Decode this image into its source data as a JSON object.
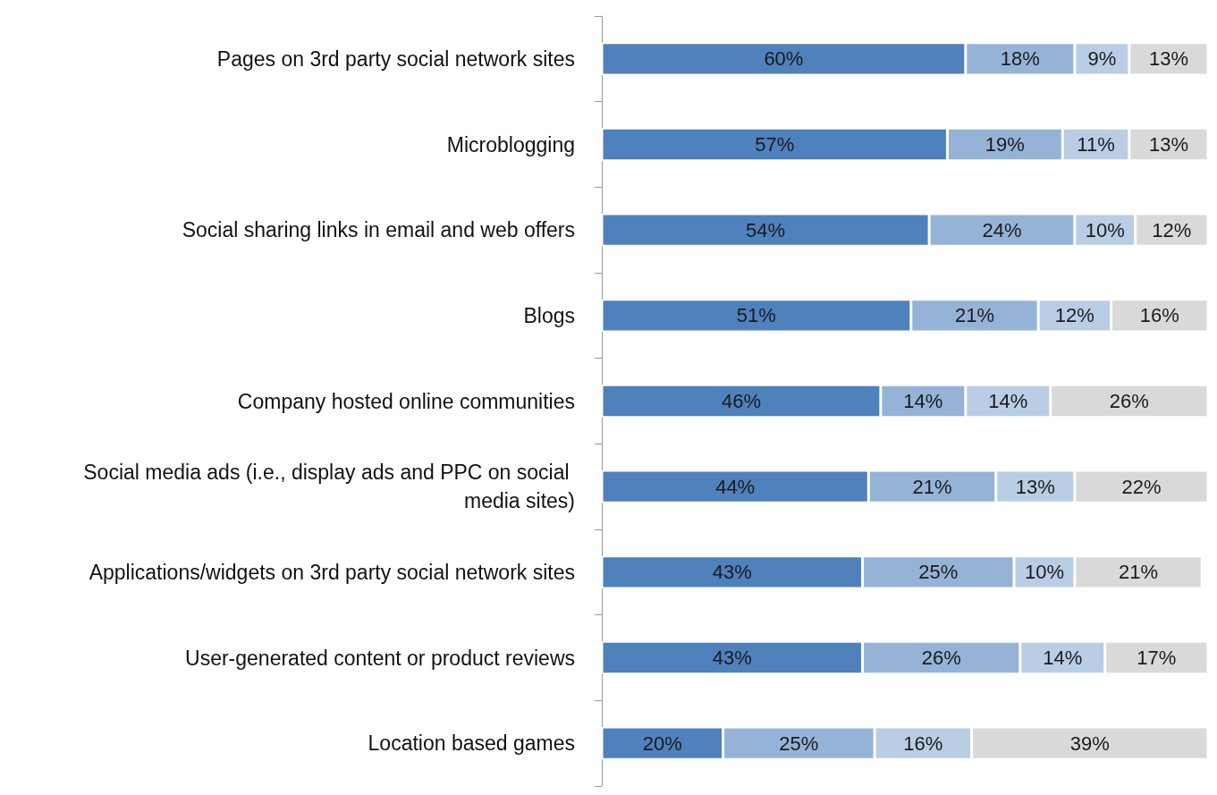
{
  "chart_data": {
    "type": "bar",
    "orientation": "horizontal",
    "stacked": true,
    "tick_labels": "y",
    "categories": [
      "Pages on 3rd party social network sites",
      "Microblogging",
      "Social sharing links in email and web offers",
      "Blogs",
      "Company hosted online communities",
      "Social media ads (i.e., display ads and PPC on social media sites)",
      "Applications/widgets on 3rd party social network sites",
      "User-generated content or product reviews",
      "Location based games"
    ],
    "series": [
      {
        "color": "#4f81bd",
        "values": [
          60,
          57,
          54,
          51,
          46,
          44,
          43,
          43,
          20
        ],
        "value_labels": [
          "60%",
          "57%",
          "54%",
          "51%",
          "46%",
          "44%",
          "43%",
          "43%",
          "20%"
        ]
      },
      {
        "color": "#95b3d7",
        "values": [
          18,
          19,
          24,
          21,
          14,
          21,
          25,
          26,
          25
        ],
        "value_labels": [
          "18%",
          "19%",
          "24%",
          "21%",
          "14%",
          "21%",
          "25%",
          "26%",
          "25%"
        ]
      },
      {
        "color": "#b9cde5",
        "values": [
          9,
          11,
          10,
          12,
          14,
          13,
          10,
          14,
          16
        ],
        "value_labels": [
          "9%",
          "11%",
          "10%",
          "12%",
          "14%",
          "13%",
          "10%",
          "14%",
          "16%"
        ]
      },
      {
        "color": "#d9d9d9",
        "values": [
          13,
          13,
          12,
          16,
          26,
          22,
          21,
          17,
          39
        ],
        "value_labels": [
          "13%",
          "13%",
          "12%",
          "16%",
          "26%",
          "22%",
          "21%",
          "17%",
          "39%"
        ]
      }
    ]
  }
}
